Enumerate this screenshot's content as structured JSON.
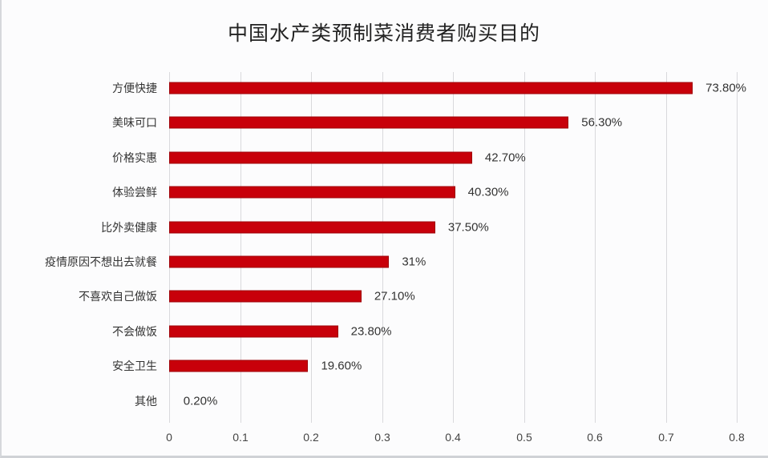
{
  "chart_data": {
    "type": "bar",
    "orientation": "horizontal",
    "title": "中国水产类预制菜消费者购买目的",
    "xlabel": "",
    "ylabel": "",
    "xlim": [
      0,
      0.8
    ],
    "xticks": [
      "0",
      "0.1",
      "0.2",
      "0.3",
      "0.4",
      "0.5",
      "0.6",
      "0.7",
      "0.8"
    ],
    "grid": true,
    "legend": null,
    "bar_color": "#c8000a",
    "categories": [
      "方便快捷",
      "美味可口",
      "价格实惠",
      "体验尝鲜",
      "比外卖健康",
      "疫情原因不想出去就餐",
      "不喜欢自己做饭",
      "不会做饭",
      "安全卫生",
      "其他"
    ],
    "values": [
      0.738,
      0.563,
      0.427,
      0.403,
      0.375,
      0.31,
      0.271,
      0.238,
      0.196,
      0.002
    ],
    "data_labels": [
      "73.80%",
      "56.30%",
      "42.70%",
      "40.30%",
      "37.50%",
      "31%",
      "27.10%",
      "23.80%",
      "19.60%",
      "0.20%"
    ]
  }
}
